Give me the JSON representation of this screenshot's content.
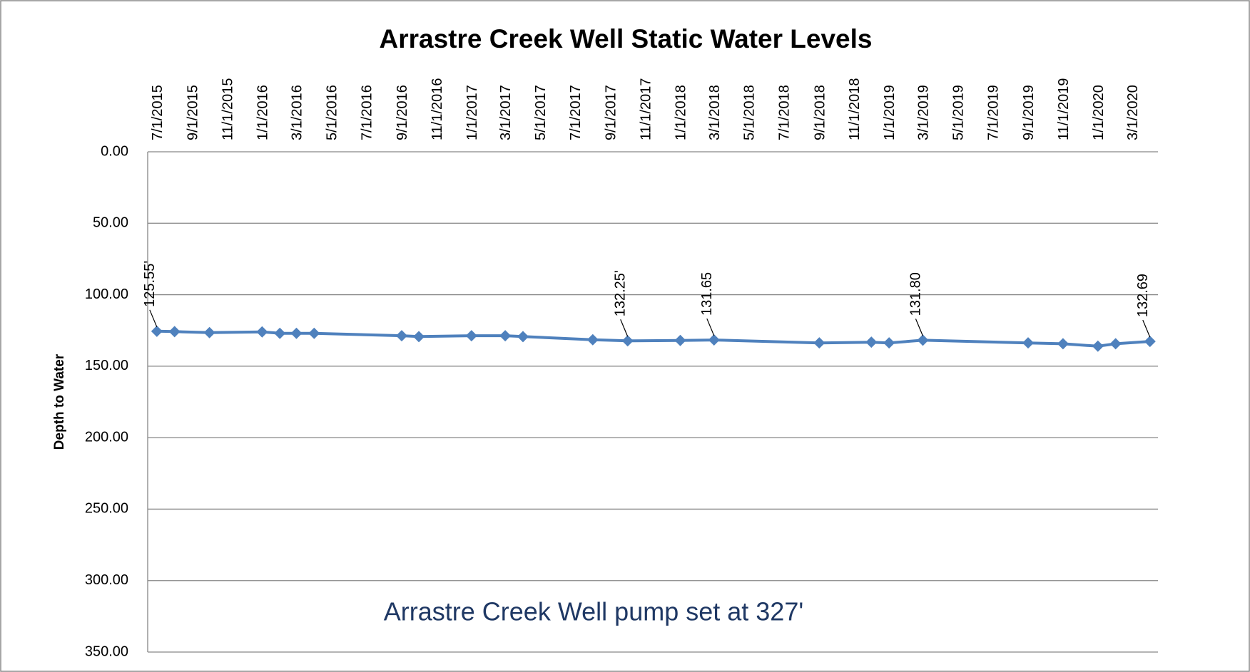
{
  "chart_data": {
    "type": "line",
    "title": "Arrastre Creek Well Static Water Levels",
    "y_label": "Depth to Water",
    "annotation": "Arrastre Creek Well pump set at 327'",
    "x": [
      "2015-07-01",
      "2015-08-01",
      "2015-10-01",
      "2016-01-01",
      "2016-02-01",
      "2016-03-01",
      "2016-04-01",
      "2016-09-01",
      "2016-10-01",
      "2017-01-01",
      "2017-03-01",
      "2017-04-01",
      "2017-08-01",
      "2017-10-01",
      "2018-01-01",
      "2018-03-01",
      "2018-09-01",
      "2018-12-01",
      "2019-01-01",
      "2019-03-01",
      "2019-09-01",
      "2019-11-01",
      "2020-01-01",
      "2020-02-01",
      "2020-04-01"
    ],
    "series": [
      {
        "name": "Depth to Water",
        "color": "#4f81bd",
        "values": [
          125.55,
          125.8,
          126.5,
          126.0,
          127.0,
          127.0,
          127.0,
          128.7,
          129.3,
          128.7,
          128.7,
          129.3,
          131.5,
          132.25,
          132.0,
          131.65,
          133.7,
          133.2,
          133.7,
          131.8,
          133.7,
          134.3,
          136.0,
          134.3,
          132.69
        ],
        "value_labels": [
          "125.55'",
          null,
          null,
          null,
          null,
          null,
          null,
          null,
          null,
          null,
          null,
          null,
          null,
          "132.25'",
          null,
          "131.65",
          null,
          null,
          null,
          "131.80",
          null,
          null,
          null,
          null,
          "132.69"
        ]
      }
    ],
    "xlim": [
      "2015-06-15",
      "2020-04-15"
    ],
    "xticks": [
      {
        "value": "2015-07-01",
        "label": "7/1/2015"
      },
      {
        "value": "2015-09-01",
        "label": "9/1/2015"
      },
      {
        "value": "2015-11-01",
        "label": "11/1/2015"
      },
      {
        "value": "2016-01-01",
        "label": "1/1/2016"
      },
      {
        "value": "2016-03-01",
        "label": "3/1/2016"
      },
      {
        "value": "2016-05-01",
        "label": "5/1/2016"
      },
      {
        "value": "2016-07-01",
        "label": "7/1/2016"
      },
      {
        "value": "2016-09-01",
        "label": "9/1/2016"
      },
      {
        "value": "2016-11-01",
        "label": "11/1/2016"
      },
      {
        "value": "2017-01-01",
        "label": "1/1/2017"
      },
      {
        "value": "2017-03-01",
        "label": "3/1/2017"
      },
      {
        "value": "2017-05-01",
        "label": "5/1/2017"
      },
      {
        "value": "2017-07-01",
        "label": "7/1/2017"
      },
      {
        "value": "2017-09-01",
        "label": "9/1/2017"
      },
      {
        "value": "2017-11-01",
        "label": "11/1/2017"
      },
      {
        "value": "2018-01-01",
        "label": "1/1/2018"
      },
      {
        "value": "2018-03-01",
        "label": "3/1/2018"
      },
      {
        "value": "2018-05-01",
        "label": "5/1/2018"
      },
      {
        "value": "2018-07-01",
        "label": "7/1/2018"
      },
      {
        "value": "2018-09-01",
        "label": "9/1/2018"
      },
      {
        "value": "2018-11-01",
        "label": "11/1/2018"
      },
      {
        "value": "2019-01-01",
        "label": "1/1/2019"
      },
      {
        "value": "2019-03-01",
        "label": "3/1/2019"
      },
      {
        "value": "2019-05-01",
        "label": "5/1/2019"
      },
      {
        "value": "2019-07-01",
        "label": "7/1/2019"
      },
      {
        "value": "2019-09-01",
        "label": "9/1/2019"
      },
      {
        "value": "2019-11-01",
        "label": "11/1/2019"
      },
      {
        "value": "2020-01-01",
        "label": "1/1/2020"
      },
      {
        "value": "2020-03-01",
        "label": "3/1/2020"
      }
    ],
    "ylim": [
      0,
      350
    ],
    "y_inverted": true,
    "yticks": [
      {
        "value": 0,
        "label": "0.00"
      },
      {
        "value": 50,
        "label": "50.00"
      },
      {
        "value": 100,
        "label": "100.00"
      },
      {
        "value": 150,
        "label": "150.00"
      },
      {
        "value": 200,
        "label": "200.00"
      },
      {
        "value": 250,
        "label": "250.00"
      },
      {
        "value": 300,
        "label": "300.00"
      },
      {
        "value": 350,
        "label": "350.00"
      }
    ],
    "grid": true
  }
}
